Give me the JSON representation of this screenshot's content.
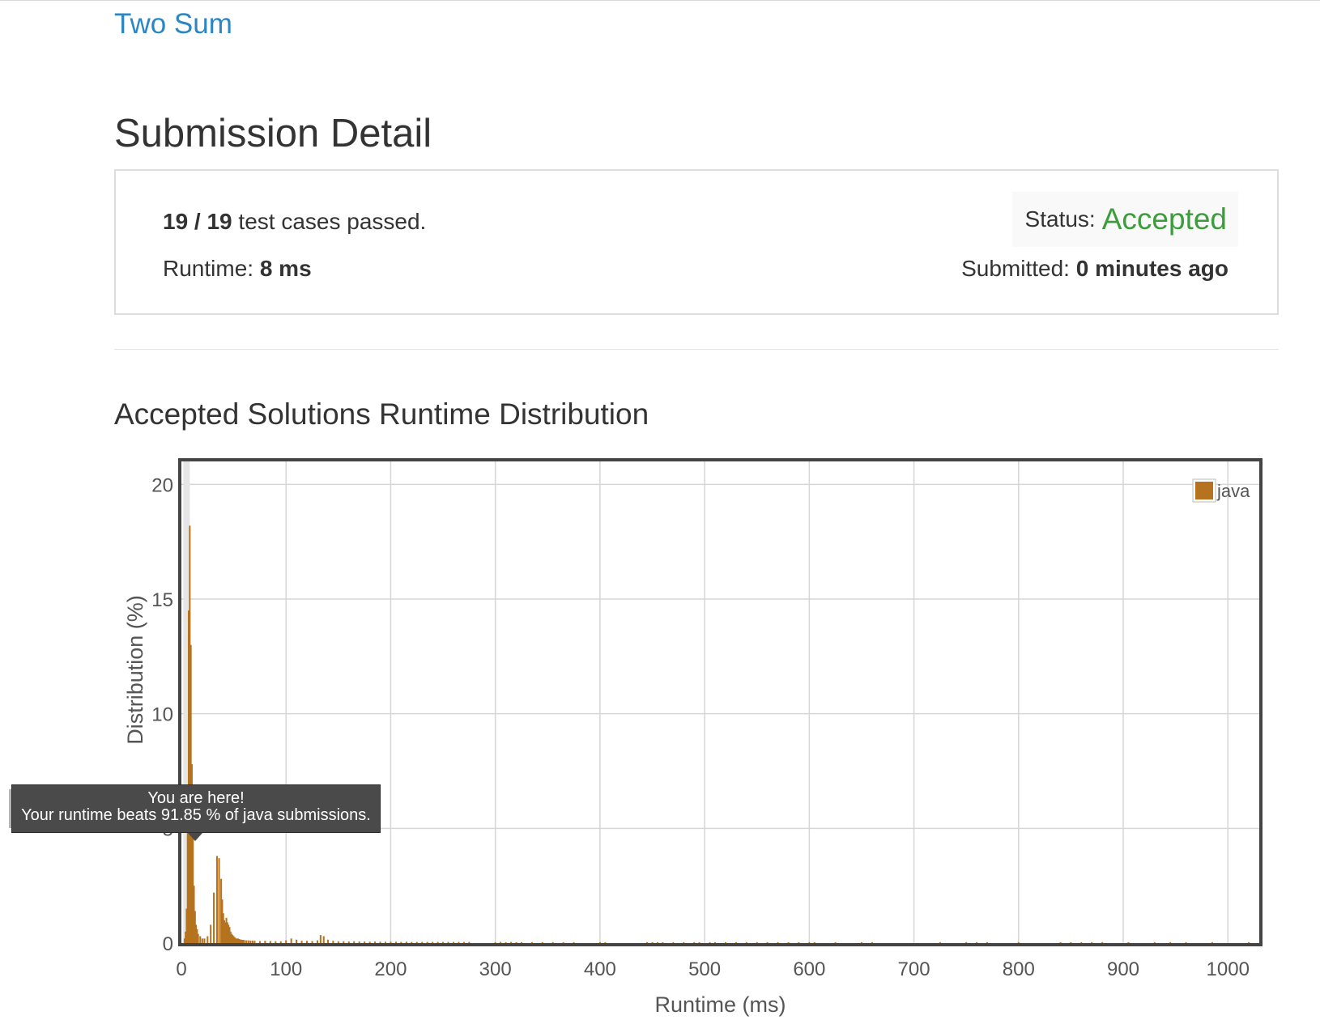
{
  "problem": {
    "title": "Two Sum"
  },
  "page": {
    "title": "Submission Detail"
  },
  "submission": {
    "tests_passed": "19 / 19",
    "tests_suffix": "test cases passed.",
    "runtime_label": "Runtime:",
    "runtime_value": "8 ms",
    "status_label": "Status:",
    "status_value": "Accepted",
    "submitted_label": "Submitted:",
    "submitted_value": "0 minutes ago"
  },
  "colors": {
    "link": "#2a86c4",
    "accepted": "#3d9d3d",
    "bar": "#b5731f",
    "plot_frame": "#444444",
    "tooltip_bg": "#4a4a4a"
  },
  "section": {
    "title": "Accepted Solutions Runtime Distribution"
  },
  "tooltip": {
    "line1": "You are here!",
    "line2": "Your runtime beats 91.85 % of java submissions."
  },
  "chart_data": {
    "type": "bar",
    "xlabel": "Runtime (ms)",
    "ylabel": "Distribution (%)",
    "xlim": [
      0,
      1030
    ],
    "ylim": [
      0,
      21
    ],
    "xticks": [
      0,
      100,
      200,
      300,
      400,
      500,
      600,
      700,
      800,
      900,
      1000
    ],
    "yticks": [
      0,
      5,
      10,
      15,
      20
    ],
    "grid": true,
    "legend_position": "top-right",
    "highlight_x": 8,
    "series": [
      {
        "name": "java",
        "color": "#b5731f",
        "x": [
          3,
          4,
          5,
          6,
          7,
          8,
          9,
          10,
          11,
          12,
          13,
          14,
          15,
          16,
          18,
          20,
          22,
          25,
          28,
          31,
          34,
          36,
          38,
          39,
          40,
          41,
          42,
          43,
          44,
          45,
          46,
          47,
          48,
          49,
          50,
          51,
          52,
          53,
          54,
          55,
          56,
          57,
          58,
          59,
          60,
          62,
          64,
          66,
          68,
          70,
          75,
          80,
          85,
          90,
          95,
          100,
          105,
          110,
          115,
          120,
          125,
          130,
          133,
          136,
          140,
          145,
          150,
          155,
          160,
          165,
          170,
          175,
          180,
          185,
          190,
          195,
          200,
          205,
          210,
          215,
          220,
          225,
          230,
          235,
          240,
          245,
          250,
          255,
          260,
          265,
          270,
          275,
          300,
          305,
          310,
          315,
          320,
          325,
          335,
          345,
          355,
          365,
          375,
          400,
          405,
          445,
          450,
          455,
          460,
          470,
          480,
          490,
          495,
          505,
          510,
          520,
          530,
          540,
          550,
          560,
          570,
          580,
          590,
          600,
          605,
          625,
          650,
          660,
          725,
          750,
          760,
          770,
          800,
          840,
          850,
          860,
          870,
          880,
          905,
          930,
          945,
          960,
          985,
          1020
        ],
        "values": [
          0.2,
          0.5,
          1.5,
          6.0,
          14.5,
          18.2,
          13.0,
          7.8,
          4.8,
          2.5,
          1.4,
          0.8,
          0.6,
          0.4,
          0.3,
          0.2,
          0.2,
          0.3,
          0.8,
          2.2,
          3.8,
          3.7,
          2.8,
          1.9,
          1.3,
          1.0,
          0.9,
          1.1,
          0.9,
          0.8,
          0.7,
          0.5,
          0.4,
          0.35,
          0.3,
          0.25,
          0.2,
          0.2,
          0.2,
          0.18,
          0.16,
          0.15,
          0.14,
          0.14,
          0.13,
          0.12,
          0.12,
          0.11,
          0.11,
          0.1,
          0.09,
          0.1,
          0.09,
          0.08,
          0.08,
          0.12,
          0.2,
          0.15,
          0.1,
          0.1,
          0.09,
          0.12,
          0.35,
          0.3,
          0.15,
          0.1,
          0.08,
          0.08,
          0.07,
          0.08,
          0.07,
          0.07,
          0.06,
          0.07,
          0.06,
          0.06,
          0.06,
          0.06,
          0.05,
          0.06,
          0.05,
          0.05,
          0.05,
          0.05,
          0.05,
          0.05,
          0.05,
          0.05,
          0.05,
          0.05,
          0.05,
          0.05,
          0.04,
          0.05,
          0.04,
          0.05,
          0.04,
          0.04,
          0.04,
          0.04,
          0.04,
          0.04,
          0.04,
          0.04,
          0.04,
          0.04,
          0.04,
          0.04,
          0.04,
          0.04,
          0.04,
          0.04,
          0.04,
          0.04,
          0.04,
          0.04,
          0.04,
          0.04,
          0.04,
          0.04,
          0.04,
          0.04,
          0.04,
          0.04,
          0.04,
          0.04,
          0.04,
          0.04,
          0.04,
          0.04,
          0.04,
          0.04,
          0.04,
          0.04,
          0.04,
          0.04,
          0.04,
          0.04,
          0.04,
          0.04,
          0.04,
          0.04,
          0.04,
          0.04
        ]
      }
    ]
  }
}
